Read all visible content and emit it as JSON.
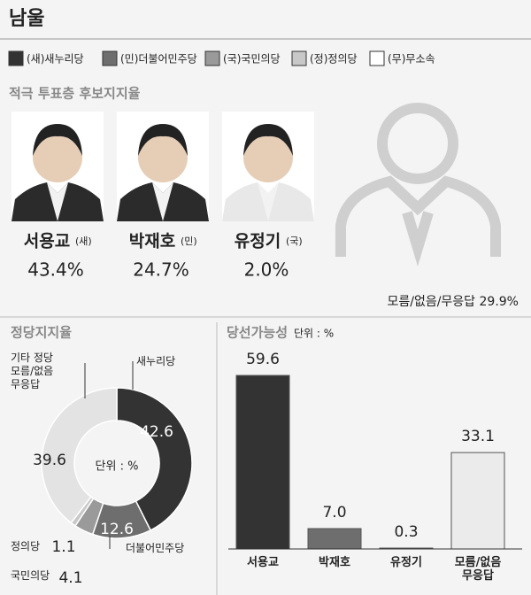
{
  "header": {
    "title": "남울"
  },
  "legend": {
    "items": [
      {
        "label": "(새)새누리당",
        "color": "#333333"
      },
      {
        "label": "(민)더불어민주당",
        "color": "#6e6e6e"
      },
      {
        "label": "(국)국민의당",
        "color": "#9a9a9a"
      },
      {
        "label": "(정)정의당",
        "color": "#c8c8c8"
      },
      {
        "label": "(무)무소속",
        "color": "#ffffff"
      }
    ]
  },
  "candidates": {
    "title": "적극 투표층 후보지지율",
    "items": [
      {
        "name": "서용교",
        "party": "(새)",
        "support": "43.4%"
      },
      {
        "name": "박재호",
        "party": "(민)",
        "support": "24.7%"
      },
      {
        "name": "유정기",
        "party": "(국)",
        "support": "2.0%"
      }
    ],
    "other": "모름/없음/무응답 29.9%"
  },
  "chart_data": [
    {
      "type": "pie",
      "title": "정당지지율",
      "unit_label": "단위 : %",
      "categories": [
        "새누리당",
        "더불어민주당",
        "국민의당",
        "정의당",
        "기타 정당\n모름/없음\n무응답"
      ],
      "values": [
        42.6,
        12.6,
        4.1,
        1.1,
        39.6
      ],
      "colors": [
        "#333333",
        "#6e6e6e",
        "#9a9a9a",
        "#c8c8c8",
        "#e3e3e3"
      ]
    },
    {
      "type": "bar",
      "title": "당선가능성",
      "unit_label": "단위 : %",
      "categories": [
        "서용교",
        "박재호",
        "유정기",
        "모름/없음\n무응답"
      ],
      "values": [
        59.6,
        7.0,
        0.3,
        33.1
      ],
      "value_labels": [
        "59.6",
        "7.0",
        "0.3",
        "33.1"
      ],
      "colors": [
        "#333333",
        "#6e6e6e",
        "#9a9a9a",
        "#ebebeb"
      ]
    }
  ]
}
